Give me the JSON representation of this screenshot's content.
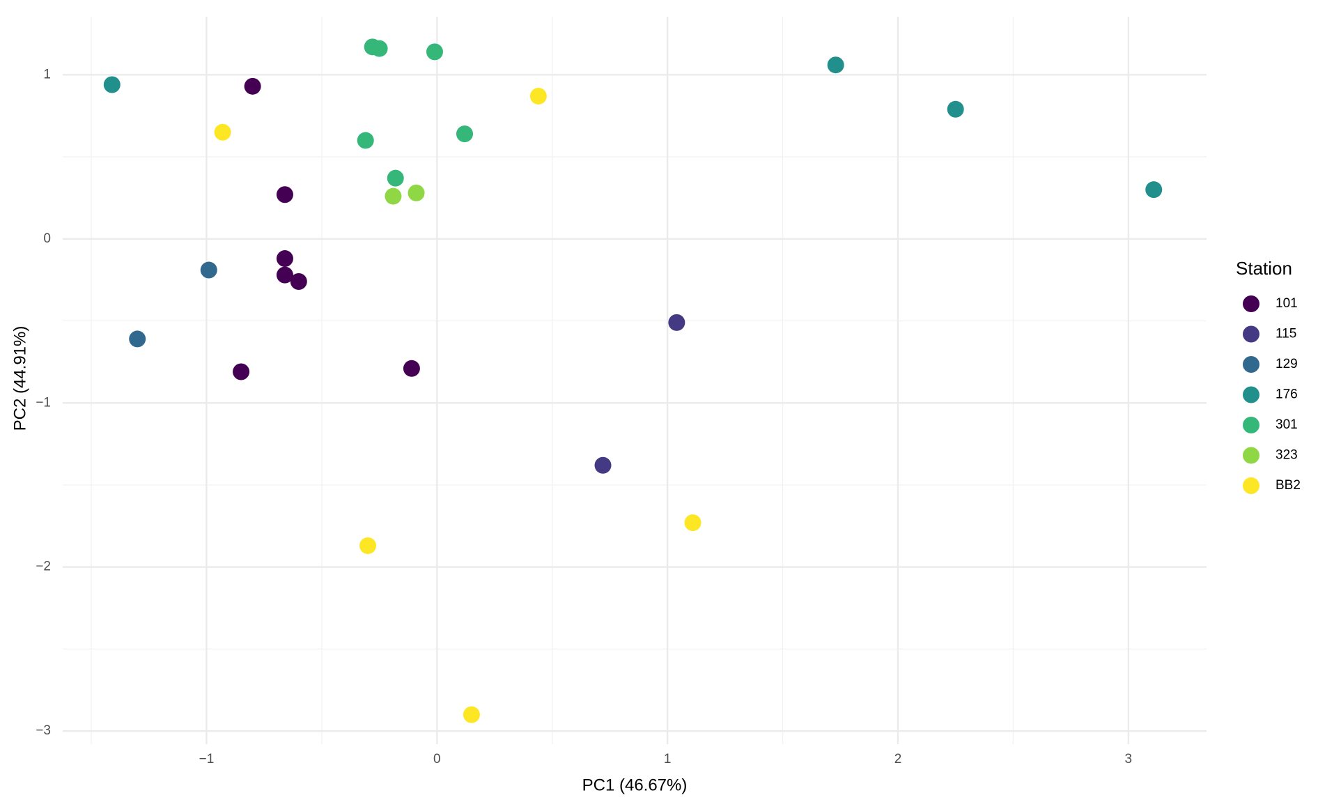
{
  "chart_data": {
    "type": "scatter",
    "x_label": "PC1 (46.67%)",
    "y_label": "PC2 (44.91%)",
    "legend_title": "Station",
    "legend_position": "right",
    "grid": true,
    "minor_grid": true,
    "xlim": [
      -1.624,
      3.339
    ],
    "ylim": [
      -3.08,
      1.354
    ],
    "xticks": [
      {
        "value": -1,
        "label": "−1"
      },
      0,
      1,
      2,
      3
    ],
    "yticks": [
      {
        "value": -3,
        "label": "−3"
      },
      {
        "value": -2,
        "label": "−2"
      },
      {
        "value": -1,
        "label": "−1"
      },
      0,
      1
    ],
    "series": [
      {
        "name": "101",
        "color": "#440154",
        "x": [
          -0.8,
          -0.66,
          -0.66,
          -0.66,
          -0.6,
          -0.85,
          -0.11
        ],
        "y": [
          0.93,
          0.27,
          -0.12,
          -0.22,
          -0.26,
          -0.81,
          -0.79
        ]
      },
      {
        "name": "115",
        "color": "#443a83",
        "x": [
          1.04,
          0.72
        ],
        "y": [
          -0.51,
          -1.38
        ]
      },
      {
        "name": "129",
        "color": "#31688e",
        "x": [
          -0.99,
          -1.3
        ],
        "y": [
          -0.19,
          -0.61
        ]
      },
      {
        "name": "176",
        "color": "#21908d",
        "x": [
          -1.41,
          1.73,
          2.25,
          3.11
        ],
        "y": [
          0.94,
          1.06,
          0.79,
          0.3
        ]
      },
      {
        "name": "301",
        "color": "#35b779",
        "x": [
          -0.28,
          -0.25,
          -0.01,
          0.12,
          -0.31,
          -0.18
        ],
        "y": [
          1.17,
          1.16,
          1.14,
          0.64,
          0.6,
          0.37
        ]
      },
      {
        "name": "323",
        "color": "#8fd744",
        "x": [
          -0.19,
          -0.09
        ],
        "y": [
          0.26,
          0.28
        ]
      },
      {
        "name": "BB2",
        "color": "#fde725",
        "x": [
          -0.93,
          0.44,
          1.11,
          -0.3,
          0.15
        ],
        "y": [
          0.65,
          0.87,
          -1.73,
          -1.87,
          -2.9
        ]
      }
    ]
  }
}
